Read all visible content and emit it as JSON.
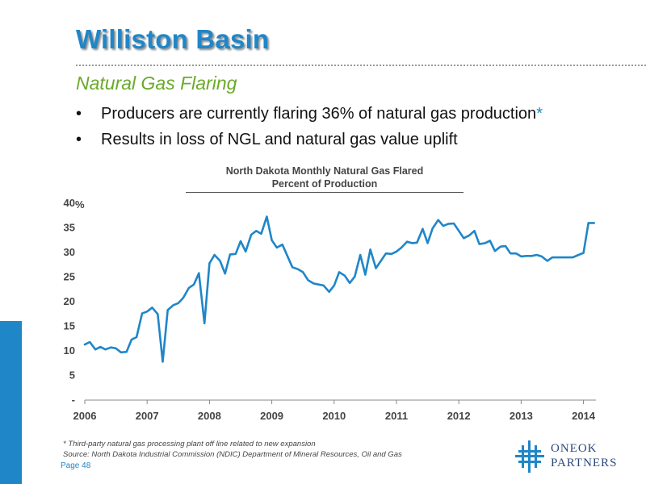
{
  "slide": {
    "title": "Williston Basin",
    "subtitle": "Natural Gas Flaring",
    "bullets": [
      {
        "text": "Producers are currently flaring 36% of natural gas production",
        "marker": "*"
      },
      {
        "text": "Results in loss of NGL and natural gas value uplift",
        "marker": ""
      }
    ],
    "footnote": "* Third-party natural gas processing plant off line related to new expansion",
    "source": "Source: North Dakota Industrial Commission (NDIC) Department of Mineral Resources, Oil and Gas",
    "page": "Page 48",
    "logo_line1": "ONEOK",
    "logo_line2": "PARTNERS",
    "bullet_glyph": "•",
    "accent_color": "#1f86c8",
    "subtitle_color": "#6aaa2a"
  },
  "chart_data": {
    "type": "line",
    "title": "North Dakota Monthly Natural Gas Flared",
    "subtitle": "Percent of Production",
    "xlabel": "",
    "ylabel": "%",
    "xlim": [
      2006,
      2014.2
    ],
    "ylim": [
      0,
      40
    ],
    "grid": false,
    "line_color": "#1f86c8",
    "x_ticks": [
      "2006",
      "2007",
      "2008",
      "2009",
      "2010",
      "2011",
      "2012",
      "2013",
      "2014"
    ],
    "y_ticks": [
      "-",
      "5",
      "10",
      "15",
      "20",
      "25",
      "30",
      "35",
      "40"
    ],
    "series": [
      {
        "x": [
          2006.0,
          2006.08,
          2006.17,
          2006.25,
          2006.33,
          2006.42,
          2006.5,
          2006.58,
          2006.67,
          2006.75,
          2006.83,
          2006.92,
          2007.0,
          2007.08,
          2007.17,
          2007.25,
          2007.33,
          2007.42,
          2007.5,
          2007.58,
          2007.67,
          2007.75,
          2007.83,
          2007.92,
          2008.0,
          2008.08,
          2008.17,
          2008.25,
          2008.33,
          2008.42,
          2008.5,
          2008.58,
          2008.67,
          2008.75,
          2008.83,
          2008.92,
          2009.0,
          2009.08,
          2009.17,
          2009.25,
          2009.33,
          2009.42,
          2009.5,
          2009.58,
          2009.67,
          2009.75,
          2009.83,
          2009.92,
          2010.0,
          2010.08,
          2010.17,
          2010.25,
          2010.33,
          2010.42,
          2010.5,
          2010.58,
          2010.67,
          2010.75,
          2010.83,
          2010.92,
          2011.0,
          2011.08,
          2011.17,
          2011.25,
          2011.33,
          2011.42,
          2011.5,
          2011.58,
          2011.67,
          2011.75,
          2011.83,
          2011.92,
          2012.0,
          2012.08,
          2012.17,
          2012.25,
          2012.33,
          2012.42,
          2012.5,
          2012.58,
          2012.67,
          2012.75,
          2012.83,
          2012.92,
          2013.0,
          2013.08,
          2013.17,
          2013.25,
          2013.33,
          2013.42,
          2013.5,
          2013.58,
          2013.67,
          2013.75,
          2013.83,
          2013.92,
          2014.0,
          2014.08,
          2014.17
        ],
        "values": [
          11.3,
          11.8,
          10.3,
          10.8,
          10.3,
          10.7,
          10.5,
          9.7,
          9.8,
          12.3,
          12.8,
          17.6,
          18.0,
          18.8,
          17.5,
          7.8,
          18.3,
          19.3,
          19.7,
          20.8,
          22.8,
          23.5,
          25.8,
          15.6,
          27.8,
          29.5,
          28.3,
          25.7,
          29.6,
          29.7,
          32.3,
          30.2,
          33.6,
          34.4,
          33.8,
          37.3,
          32.5,
          31.0,
          31.6,
          29.3,
          27.0,
          26.6,
          26.0,
          24.4,
          23.7,
          23.5,
          23.3,
          22.0,
          23.3,
          26.0,
          25.3,
          23.8,
          25.1,
          29.5,
          25.5,
          30.6,
          26.8,
          28.3,
          29.8,
          29.7,
          30.2,
          31.0,
          32.2,
          31.9,
          32.0,
          34.8,
          31.9,
          34.9,
          36.6,
          35.4,
          35.8,
          35.9,
          34.4,
          32.9,
          33.5,
          34.4,
          31.7,
          31.9,
          32.4,
          30.3,
          31.2,
          31.3,
          29.8,
          29.8,
          29.2,
          29.3,
          29.3,
          29.5,
          29.2,
          28.3,
          29.0,
          29.0,
          29.0,
          29.0,
          29.0,
          29.5,
          29.9,
          36.0,
          36.0
        ]
      }
    ]
  }
}
